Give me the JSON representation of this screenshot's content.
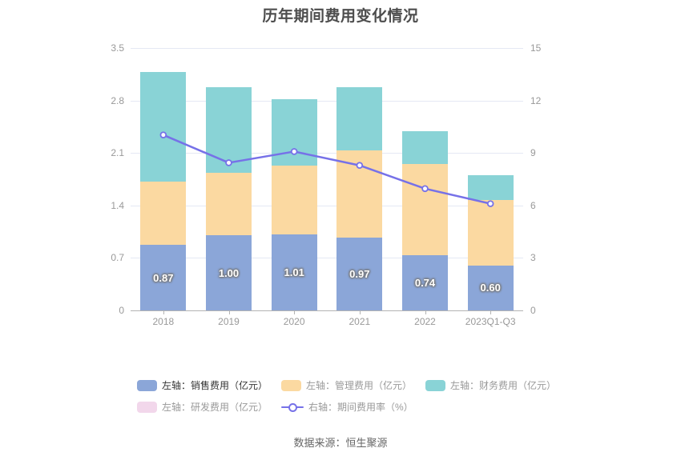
{
  "title": "历年期间费用变化情况",
  "footer": "数据来源：恒生聚源",
  "chart_data": {
    "type": "bar",
    "subtype": "stacked-bar-with-line",
    "categories": [
      "2018",
      "2019",
      "2020",
      "2021",
      "2022",
      "2023Q1-Q3"
    ],
    "left_axis": {
      "min": 0,
      "max": 3.5,
      "ticks": [
        "3.5",
        "2.8",
        "2.1",
        "1.4",
        "0.7",
        "0"
      ]
    },
    "right_axis": {
      "min": 0,
      "max": 15,
      "ticks": [
        "15",
        "12",
        "9",
        "6",
        "3",
        "0"
      ]
    },
    "grid": true,
    "series": [
      {
        "key": "sales",
        "name": "左轴：销售费用（亿元）",
        "type": "bar",
        "stack": true,
        "axis": "left",
        "color": "#8ba6d8",
        "values": [
          0.87,
          1.0,
          1.01,
          0.97,
          0.74,
          0.6
        ],
        "labels": [
          "0.87",
          "1.00",
          "1.01",
          "0.97",
          "0.74",
          "0.60"
        ],
        "show_labels": true
      },
      {
        "key": "management",
        "name": "左轴：管理费用（亿元）",
        "type": "bar",
        "stack": true,
        "axis": "left",
        "color": "#fbd9a1",
        "values": [
          0.85,
          0.84,
          0.92,
          1.16,
          1.21,
          0.87
        ]
      },
      {
        "key": "financial",
        "name": "左轴：财务费用（亿元）",
        "type": "bar",
        "stack": true,
        "axis": "left",
        "color": "#89d3d6",
        "values": [
          1.46,
          1.14,
          0.89,
          0.85,
          0.44,
          0.33
        ]
      },
      {
        "key": "rnd",
        "name": "左轴：研发费用（亿元）",
        "type": "bar",
        "stack": true,
        "axis": "left",
        "color": "#f2d7eb",
        "values": [
          0,
          0,
          0,
          0,
          0,
          0
        ]
      },
      {
        "key": "rate",
        "name": "右轴：期间费用率（%）",
        "type": "line",
        "axis": "right",
        "color": "#7671e8",
        "values": [
          10.03,
          8.44,
          9.08,
          8.29,
          6.96,
          6.1
        ]
      }
    ],
    "legend": {
      "position": "bottom-left-wrapped",
      "rows": [
        [
          {
            "label": "左轴：销售费用（亿元）",
            "swatch": "rect",
            "color": "#8ba6d8",
            "text_color": "#333333"
          },
          {
            "label": "左轴：管理费用（亿元）",
            "swatch": "rect",
            "color": "#fbd9a1",
            "text_color": "#999999"
          },
          {
            "label": "左轴：财务费用（亿元）",
            "swatch": "rect",
            "color": "#89d3d6",
            "text_color": "#999999"
          }
        ],
        [
          {
            "label": "左轴：研发费用（亿元）",
            "swatch": "rect",
            "color": "#f2d7eb",
            "text_color": "#999999"
          },
          {
            "label": "右轴：期间费用率（%）",
            "swatch": "line",
            "color": "#7671e8",
            "text_color": "#999999"
          }
        ]
      ]
    },
    "colors": {
      "gridline": "#e4e8f4",
      "axis_line": "#b3b3b3",
      "tick_text": "#999999",
      "title_text": "#4d4d4d",
      "bar_label_text": "#ffffff",
      "line_marker_fill": "#fafaff"
    }
  }
}
